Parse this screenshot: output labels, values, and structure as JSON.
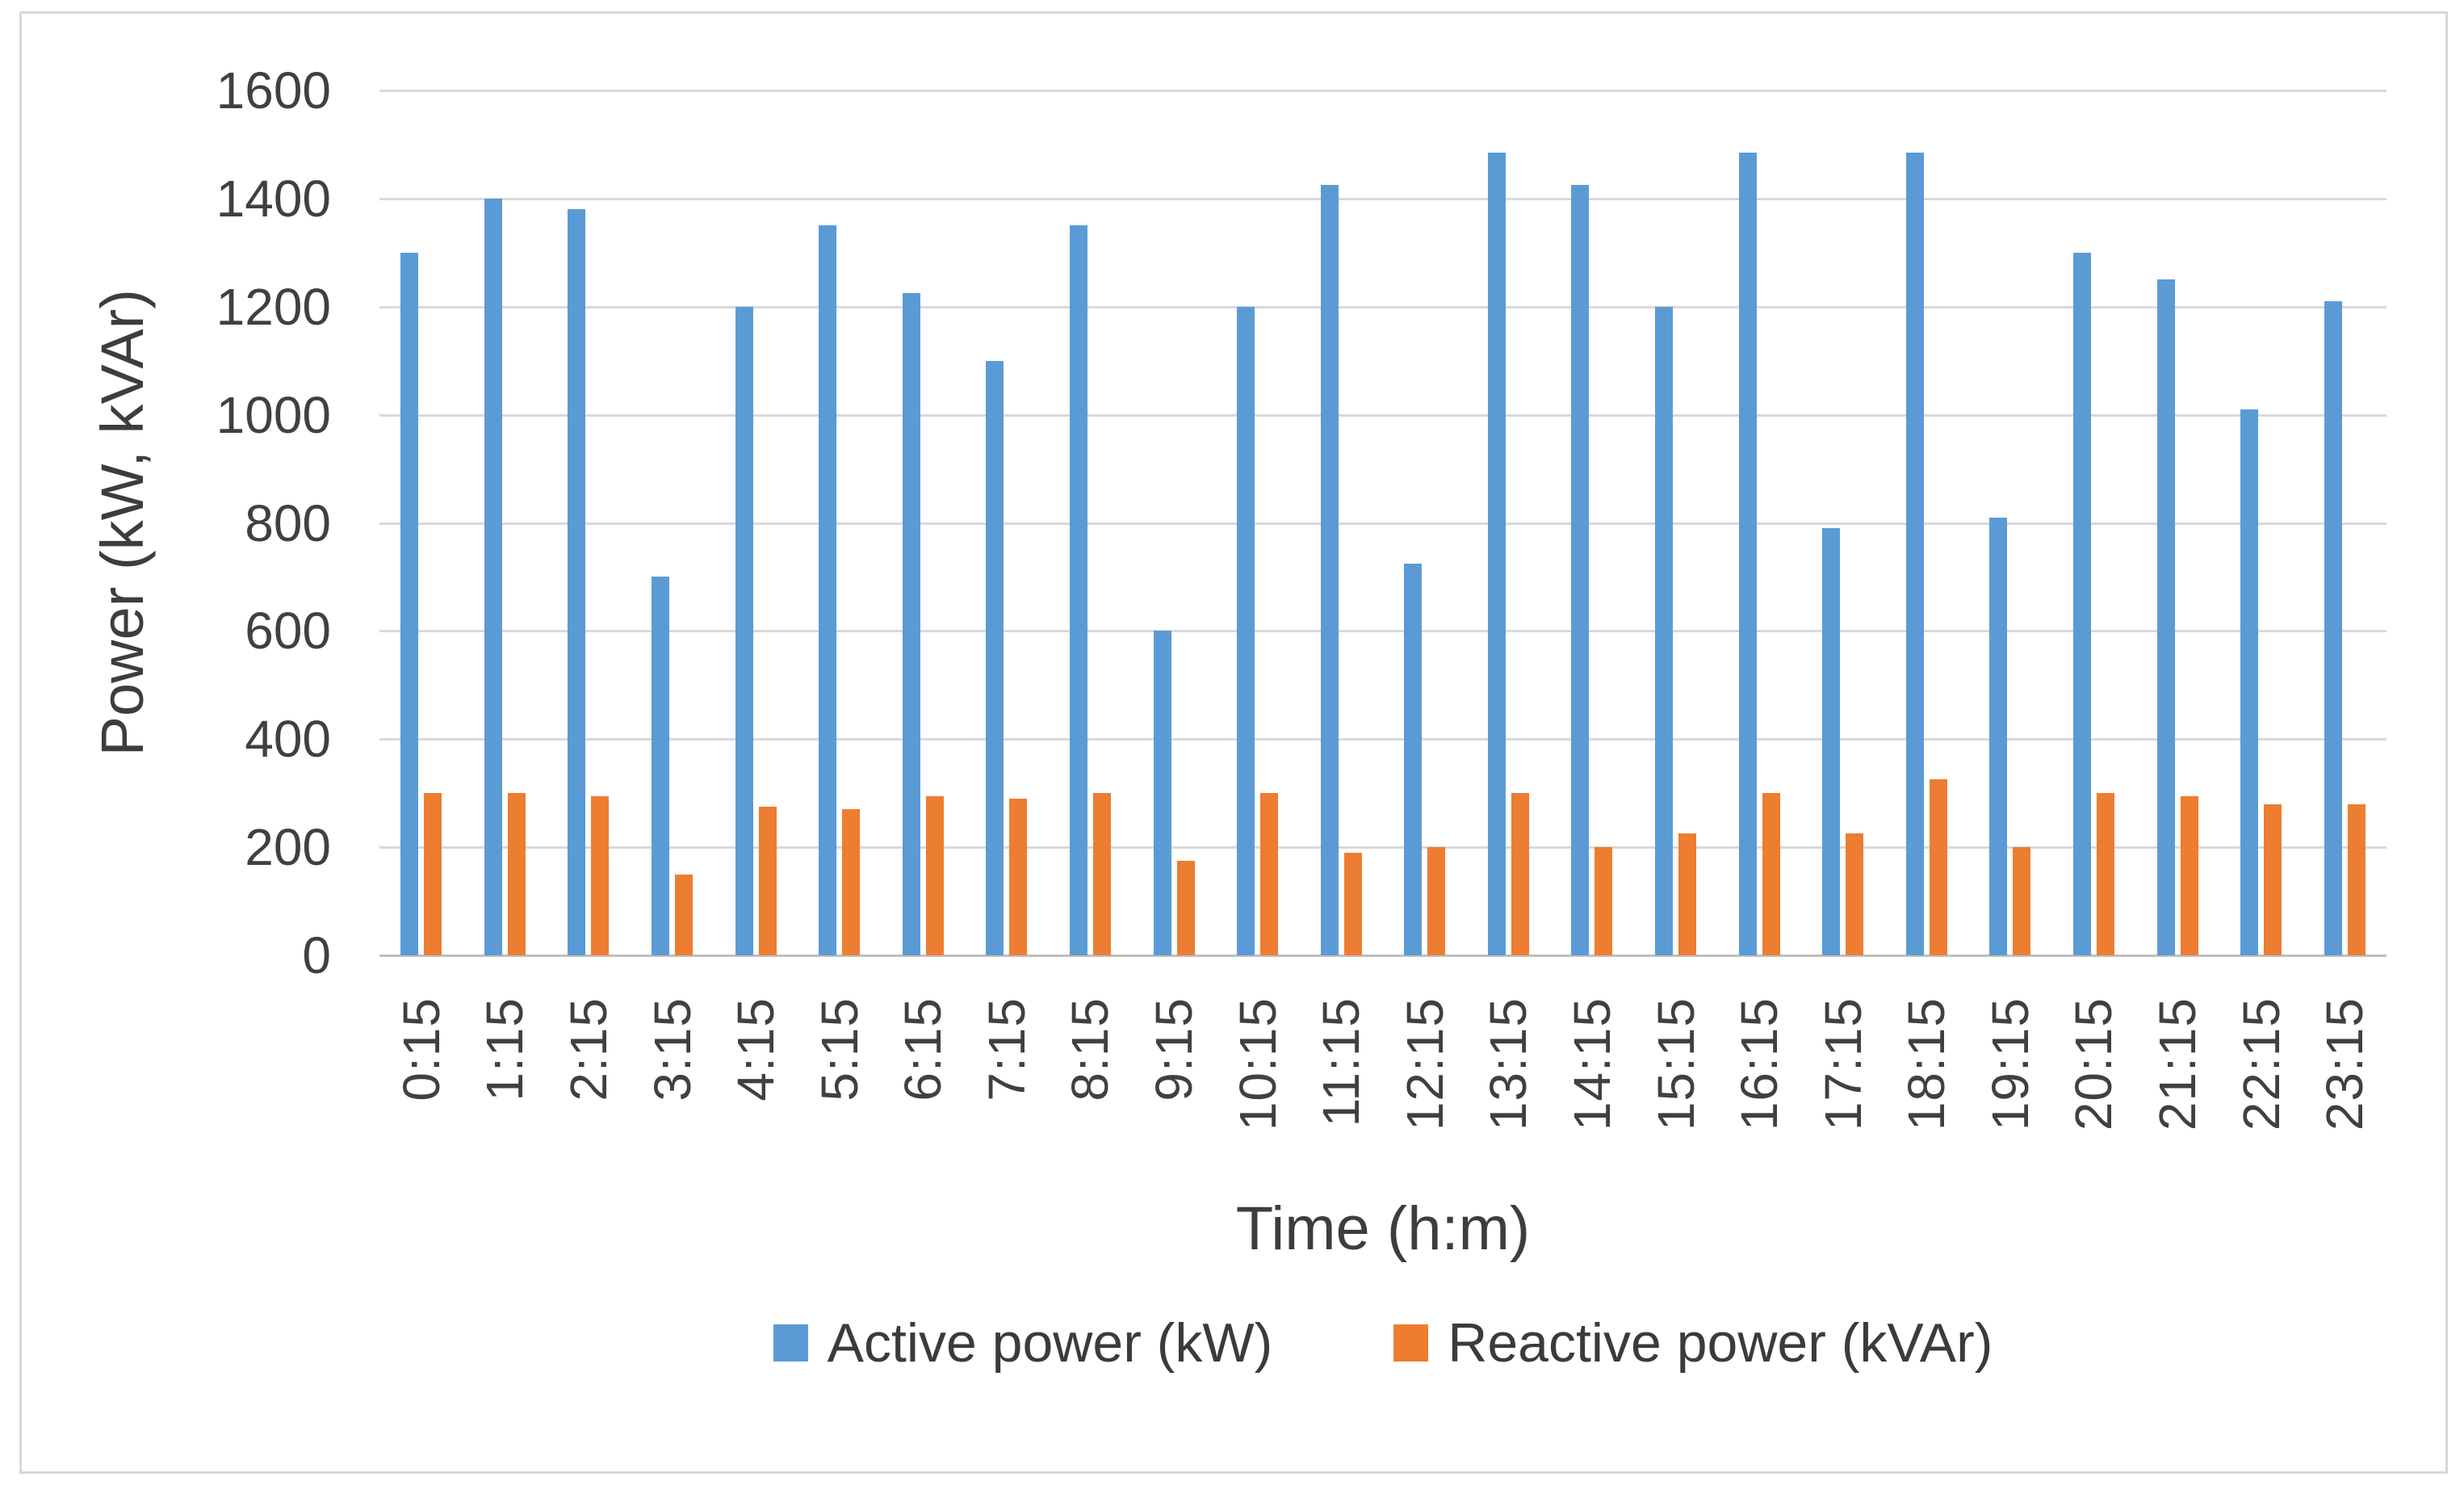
{
  "chart_data": {
    "type": "bar",
    "title": "",
    "xlabel": "Time (h:m)",
    "ylabel": "Power (kW, kVAr)",
    "ylim": [
      0,
      1600
    ],
    "yticks": [
      0,
      200,
      400,
      600,
      800,
      1000,
      1200,
      1400,
      1600
    ],
    "grid": "horizontal-only",
    "legend_position": "bottom",
    "categories": [
      "0:15",
      "1:15",
      "2:15",
      "3:15",
      "4:15",
      "5:15",
      "6:15",
      "7:15",
      "8:15",
      "9:15",
      "10:15",
      "11:15",
      "12:15",
      "13:15",
      "14:15",
      "15:15",
      "16:15",
      "17:15",
      "18:15",
      "19:15",
      "20:15",
      "21:15",
      "22:15",
      "23:15"
    ],
    "series": [
      {
        "name": "Active power (kW)",
        "color": "#5B9BD5",
        "values": [
          1300,
          1400,
          1380,
          700,
          1200,
          1350,
          1225,
          1100,
          1350,
          600,
          1200,
          1425,
          725,
          1485,
          1425,
          1200,
          1485,
          790,
          1485,
          810,
          1300,
          1250,
          1010,
          1210
        ]
      },
      {
        "name": "Reactive power (kVAr)",
        "color": "#ED7D31",
        "values": [
          300,
          300,
          295,
          150,
          275,
          270,
          295,
          290,
          300,
          175,
          300,
          190,
          200,
          300,
          200,
          225,
          300,
          225,
          325,
          200,
          300,
          295,
          280,
          280
        ]
      }
    ],
    "colors": {
      "gridline": "#D9D9D9",
      "axis_line": "#BFBFBF",
      "tick_text": "#404040",
      "title_text": "#3D3D3D",
      "frame_border": "#D7D7D7",
      "background": "#FFFFFF"
    }
  }
}
